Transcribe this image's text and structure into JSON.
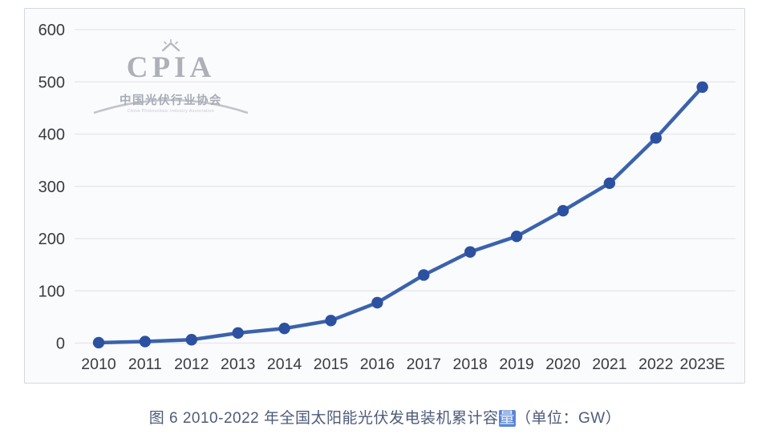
{
  "watermark": {
    "acronym": "CPIA",
    "org_cn": "中国光伏行业协会",
    "org_en": "China Photovoltaic Industry Association"
  },
  "caption": {
    "prefix": "图 6   2010-2022 年全国太阳能光伏发电装机累计容",
    "highlight": "量",
    "suffix": "（单位：GW）"
  },
  "chart_data": {
    "type": "line",
    "title": "图 6 2010-2022 年全国太阳能光伏发电装机累计容量（单位：GW）",
    "categories": [
      "2010",
      "2011",
      "2012",
      "2013",
      "2014",
      "2015",
      "2016",
      "2017",
      "2018",
      "2019",
      "2020",
      "2021",
      "2022",
      "2023E"
    ],
    "series": [
      {
        "name": "全国太阳能光伏发电装机累计容量",
        "values": [
          0.9,
          3,
          6.5,
          19.4,
          28.1,
          43.2,
          77.4,
          130.3,
          174.5,
          204.3,
          253.4,
          306,
          392.6,
          490
        ]
      }
    ],
    "xlabel": "",
    "ylabel": "",
    "unit": "GW",
    "ylim": [
      0,
      600
    ],
    "ytick_interval": 100,
    "ytick_labels": [
      "0",
      "100",
      "200",
      "300",
      "400",
      "500",
      "600"
    ],
    "grid": true,
    "legend_position": "none",
    "line_color": "#3b63ab",
    "marker_color": "#2c51a1",
    "gridline_color": "#e5e6ea",
    "tick_color": "#3a3b41"
  }
}
